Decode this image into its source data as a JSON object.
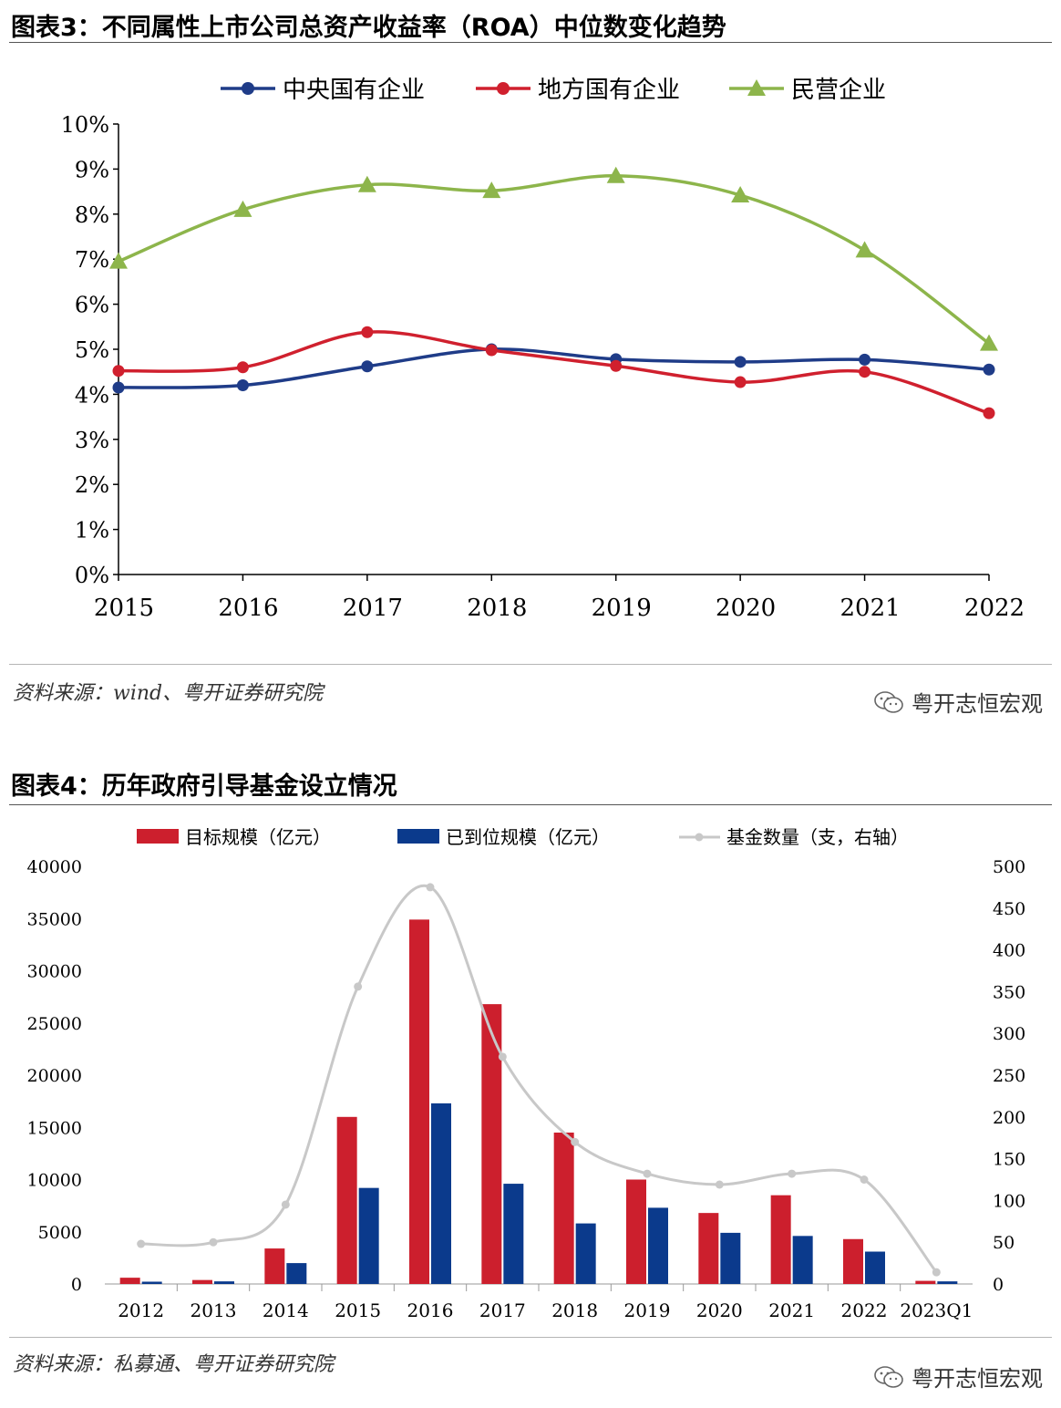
{
  "figure3": {
    "title": "图表3：不同属性上市公司总资产收益率（ROA）中位数变化趋势",
    "source": "资料来源：wind、粤开证券研究院",
    "watermark": "粤开志恒宏观",
    "colors": {
      "central": "#1f3c88",
      "local": "#d0202e",
      "private": "#8db54b"
    }
  },
  "figure4": {
    "title": "图表4：历年政府引导基金设立情况",
    "source": "资料来源：私募通、粤开证券研究院",
    "watermark": "粤开志恒宏观",
    "colors": {
      "target": "#cc1f2d",
      "actual": "#0b3a8c",
      "count": "#c8c8c8"
    }
  },
  "chart_data": [
    {
      "type": "line",
      "title": "图表3：不同属性上市公司总资产收益率（ROA）中位数变化趋势",
      "x": [
        "2015",
        "2016",
        "2017",
        "2018",
        "2019",
        "2020",
        "2021",
        "2022"
      ],
      "ylim": [
        0,
        10
      ],
      "y_ticks": [
        "0%",
        "1%",
        "2%",
        "3%",
        "4%",
        "5%",
        "6%",
        "7%",
        "8%",
        "9%",
        "10%"
      ],
      "legend_position": "top",
      "grid": false,
      "series": [
        {
          "name": "中央国有企业",
          "marker": "circle",
          "values": [
            4.15,
            4.2,
            4.62,
            5.0,
            4.78,
            4.72,
            4.77,
            4.55
          ]
        },
        {
          "name": "地方国有企业",
          "marker": "circle",
          "values": [
            4.52,
            4.6,
            5.38,
            4.98,
            4.63,
            4.27,
            4.5,
            3.58
          ]
        },
        {
          "name": "民营企业",
          "marker": "triangle",
          "values": [
            6.95,
            8.1,
            8.65,
            8.52,
            8.85,
            8.42,
            7.2,
            5.13
          ]
        }
      ]
    },
    {
      "type": "bar",
      "title": "图表4：历年政府引导基金设立情况",
      "categories": [
        "2012",
        "2013",
        "2014",
        "2015",
        "2016",
        "2017",
        "2018",
        "2019",
        "2020",
        "2021",
        "2022",
        "2023Q1"
      ],
      "ylim": [
        0,
        40000
      ],
      "y_ticks": [
        "0",
        "5000",
        "10000",
        "15000",
        "20000",
        "25000",
        "30000",
        "35000",
        "40000"
      ],
      "y2lim": [
        0,
        500
      ],
      "y2_ticks": [
        "0",
        "50",
        "100",
        "150",
        "200",
        "250",
        "300",
        "350",
        "400",
        "450",
        "500"
      ],
      "legend_position": "top",
      "grid": false,
      "series": [
        {
          "name": "目标规模（亿元）",
          "kind": "bar",
          "axis": "left",
          "values": [
            600,
            380,
            3400,
            16000,
            34900,
            26800,
            14500,
            10000,
            6800,
            8500,
            4300,
            300
          ]
        },
        {
          "name": "已到位规模（亿元）",
          "kind": "bar",
          "axis": "left",
          "values": [
            220,
            250,
            2000,
            9200,
            17300,
            9600,
            5800,
            7300,
            4900,
            4600,
            3100,
            250
          ]
        },
        {
          "name": "基金数量（支，右轴）",
          "kind": "line",
          "axis": "right",
          "values": [
            48,
            50,
            95,
            356,
            475,
            272,
            170,
            132,
            119,
            132,
            125,
            14
          ]
        }
      ]
    }
  ]
}
